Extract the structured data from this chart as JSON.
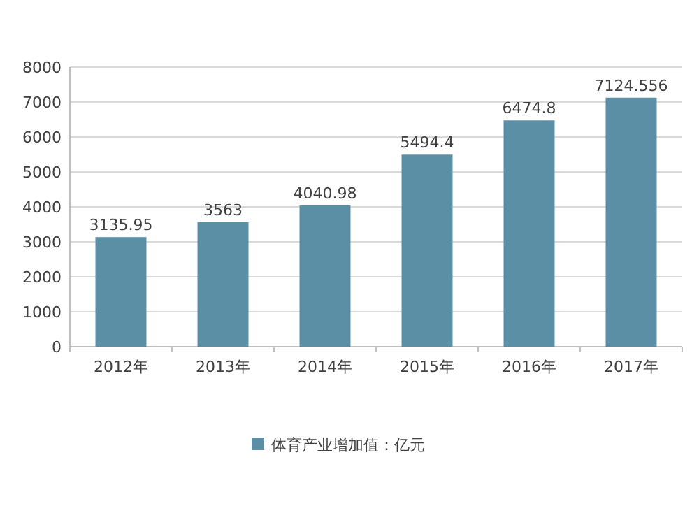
{
  "chart_data": {
    "type": "bar",
    "categories": [
      "2012年",
      "2013年",
      "2014年",
      "2015年",
      "2016年",
      "2017年"
    ],
    "series": [
      {
        "name": "体育产业增加值：亿元",
        "color": "#5b8fa6",
        "values": [
          3135.95,
          3563,
          4040.98,
          5494.4,
          6474.8,
          7124.556
        ]
      }
    ],
    "ylim": [
      0,
      8000
    ],
    "yticks": [
      0,
      1000,
      2000,
      3000,
      4000,
      5000,
      6000,
      7000,
      8000
    ],
    "grid": "y",
    "legend": "bottom",
    "data_labels": true
  }
}
